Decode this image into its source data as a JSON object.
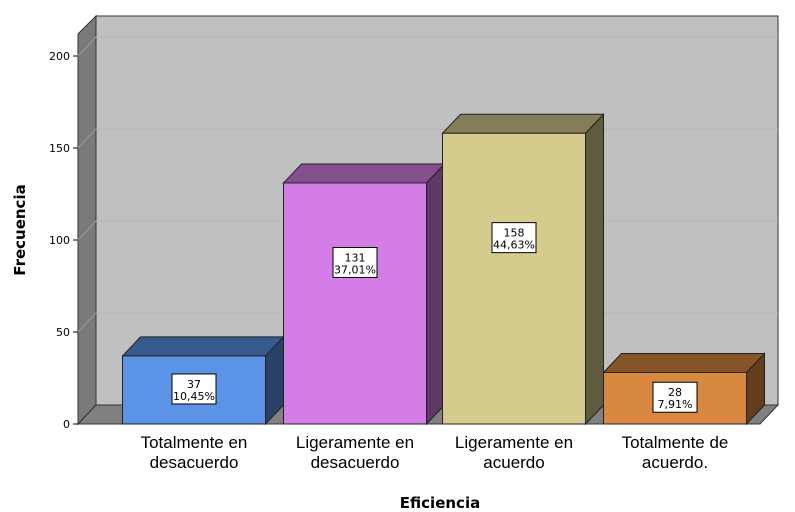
{
  "chart_data": {
    "type": "bar",
    "categories": [
      [
        "Totalmente en",
        "desacuerdo"
      ],
      [
        "Ligeramente en",
        "desacuerdo"
      ],
      [
        "Ligeramente en",
        "acuerdo"
      ],
      [
        "Totalmente de",
        "acuerdo."
      ]
    ],
    "values": [
      37,
      131,
      158,
      28
    ],
    "percent_labels": [
      "10,45%",
      "37,01%",
      "44,63%",
      "7,91%"
    ],
    "colors": [
      "#5b93e6",
      "#d57de6",
      "#d4cb8c",
      "#d8893f"
    ],
    "ylim": [
      0,
      200
    ],
    "yticks": [
      0,
      50,
      100,
      150,
      200
    ],
    "xlabel": "Eficiencia",
    "ylabel": "Frecuencia",
    "background_color": "#c0c0c0",
    "grid": true,
    "style": "3d"
  }
}
